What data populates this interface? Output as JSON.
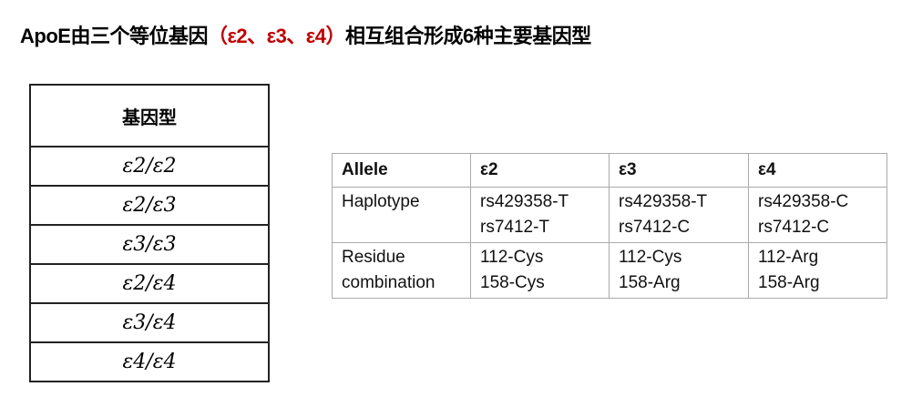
{
  "title": {
    "prefix": "ApoE由三个等位基因",
    "highlight": "（ε2、ε3、ε4）",
    "suffix": "相互组合形成6种主要基因型",
    "highlight_color": "#c00000"
  },
  "genotype_table": {
    "header": "基因型",
    "rows": [
      "ε2/ε2",
      "ε2/ε3",
      "ε3/ε3",
      "ε2/ε4",
      "ε3/ε4",
      "ε4/ε4"
    ]
  },
  "allele_table": {
    "headers": [
      "Allele",
      "ε2",
      "ε3",
      "ε4"
    ],
    "rows": [
      {
        "label": "Haplotype",
        "cells": [
          [
            "rs429358-T",
            "rs7412-T"
          ],
          [
            "rs429358-T",
            "rs7412-C"
          ],
          [
            "rs429358-C",
            "rs7412-C"
          ]
        ]
      },
      {
        "label_lines": [
          "Residue",
          "combination"
        ],
        "cells": [
          [
            "112-Cys",
            "158-Cys"
          ],
          [
            "112-Cys",
            "158-Arg"
          ],
          [
            "112-Arg",
            "158-Arg"
          ]
        ]
      }
    ]
  }
}
